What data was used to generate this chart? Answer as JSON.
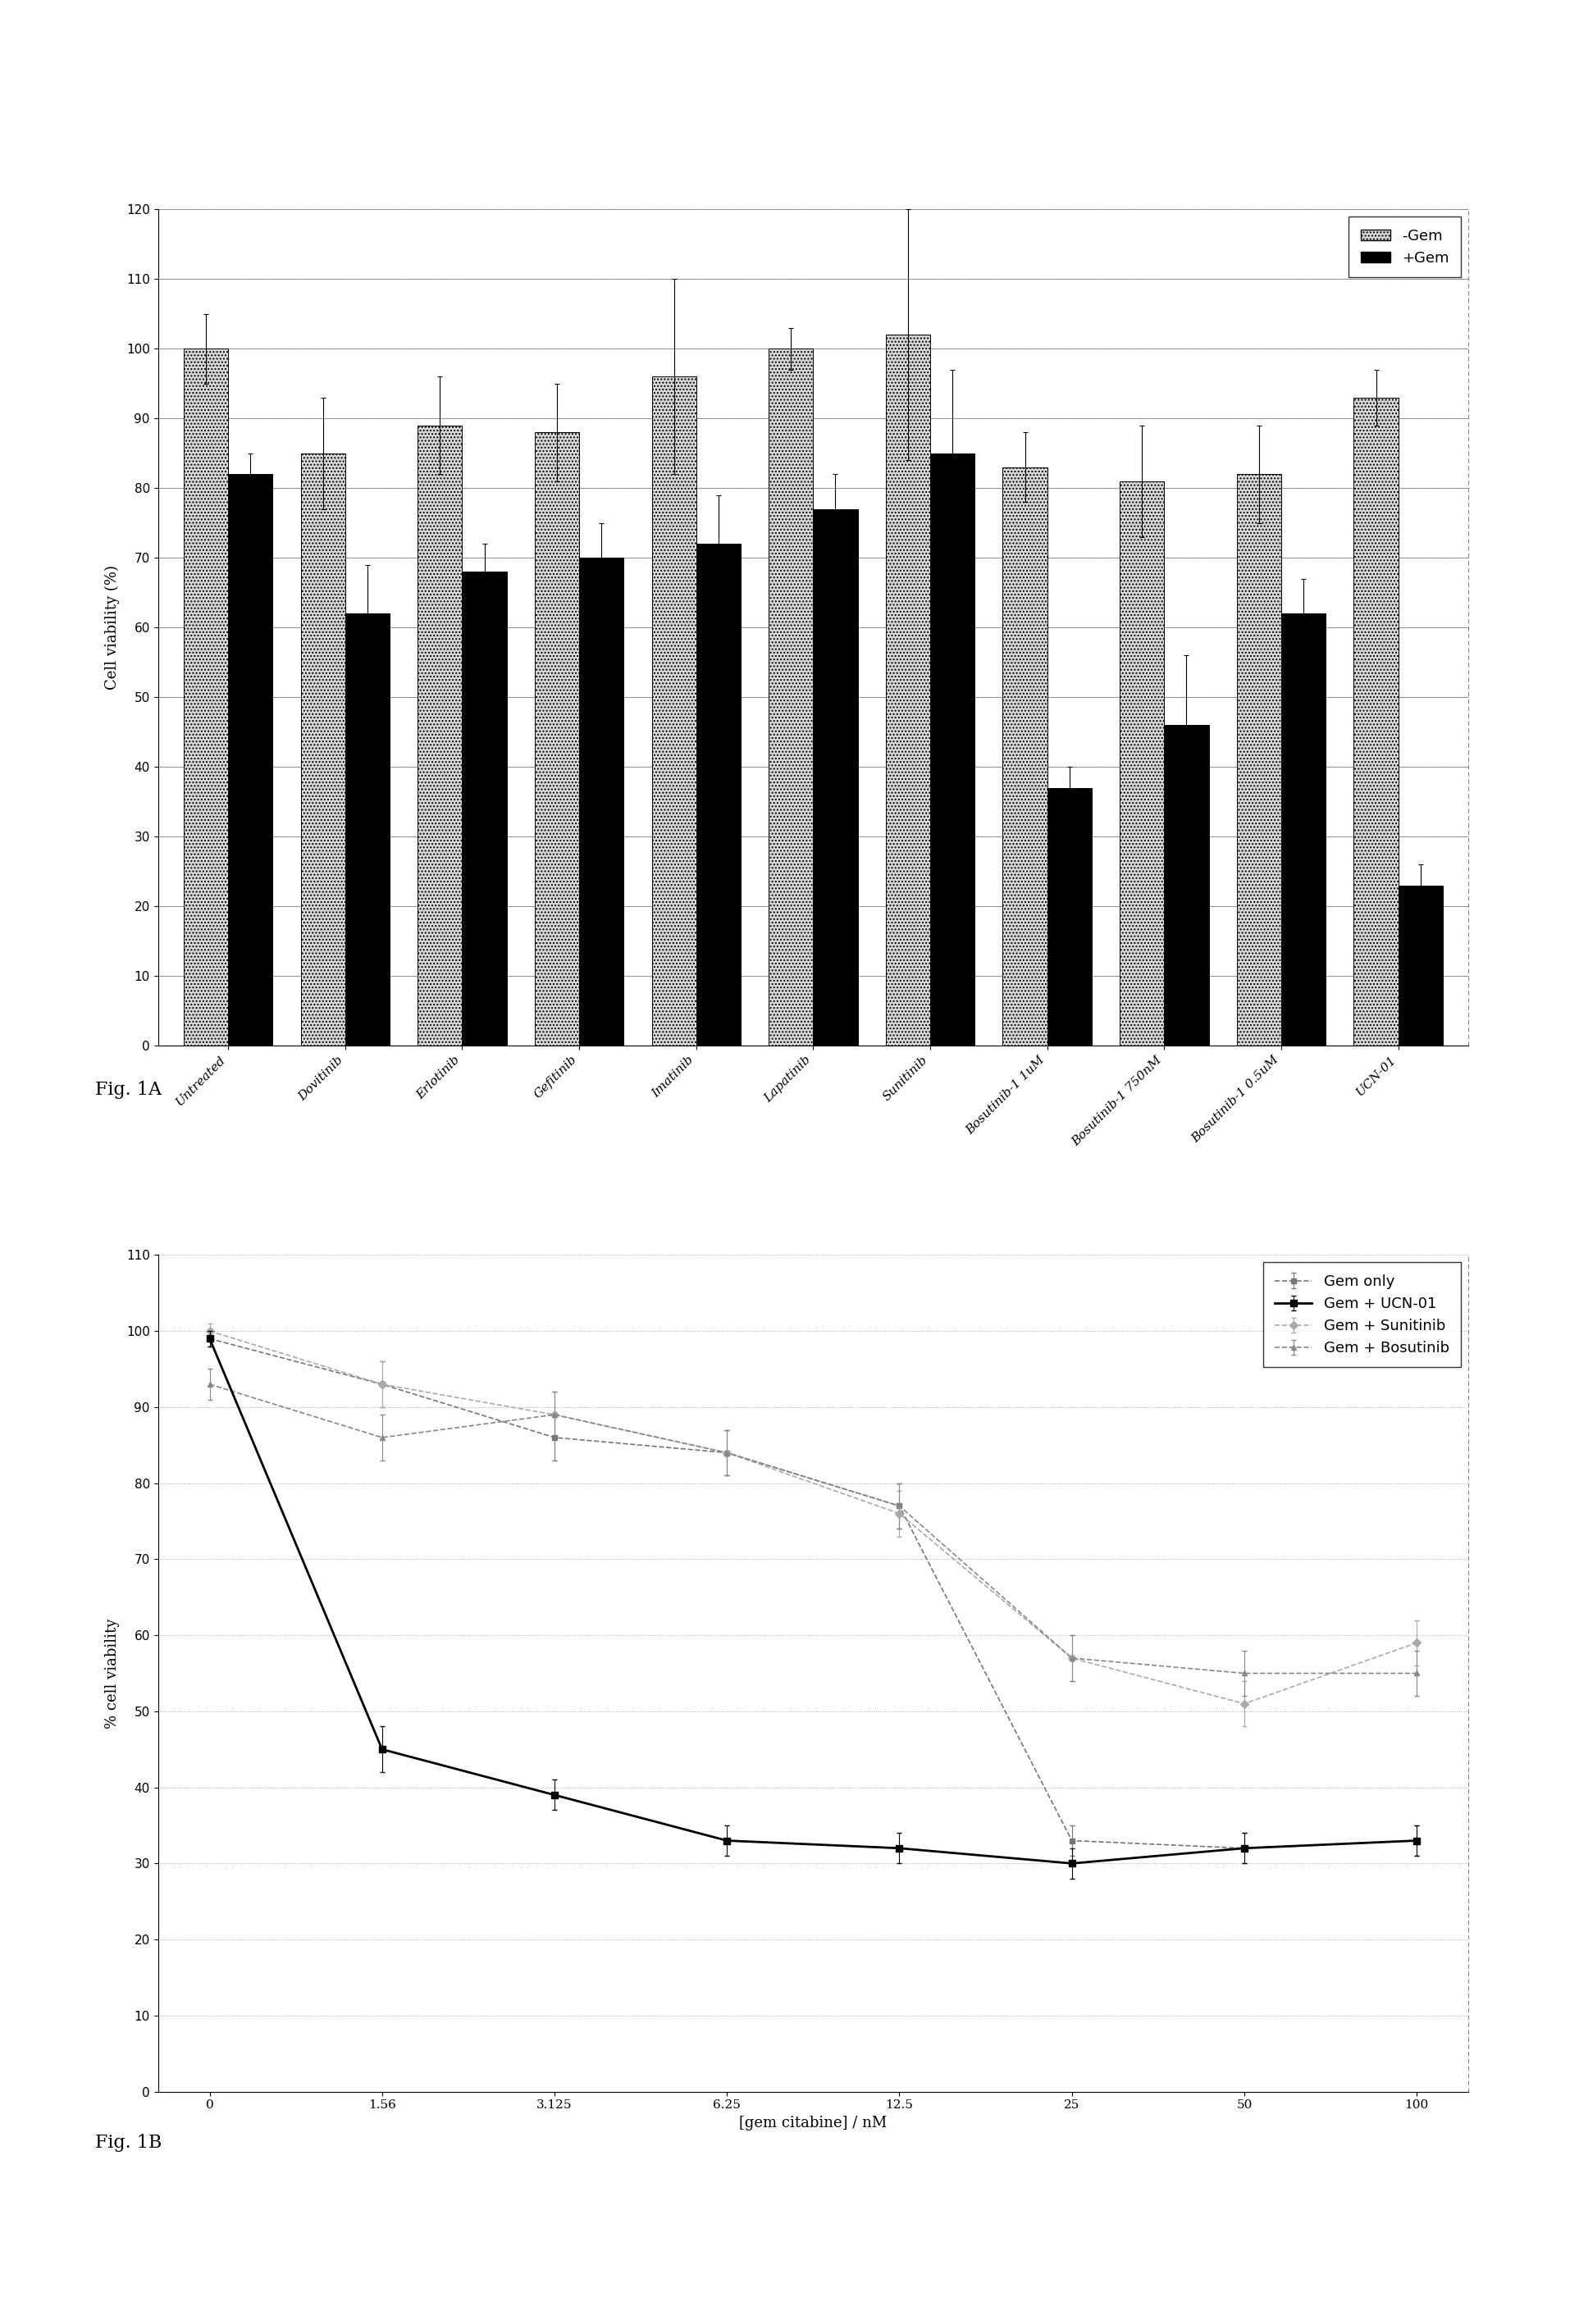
{
  "fig1A": {
    "categories": [
      "Untreated",
      "Dovitinib",
      "Erlotinib",
      "Gefitinib",
      "Imatinib",
      "Lapatinib",
      "Sunitinib",
      "Bosutinib-1 1uM",
      "Bosutinib-1 750nM",
      "Bosutinib-1 0.5uM",
      "UCN-01"
    ],
    "no_gem": [
      100,
      85,
      89,
      88,
      96,
      100,
      102,
      83,
      81,
      82,
      93
    ],
    "plus_gem": [
      82,
      62,
      68,
      70,
      72,
      77,
      85,
      37,
      46,
      62,
      23
    ],
    "no_gem_err": [
      5,
      8,
      7,
      7,
      14,
      3,
      18,
      5,
      8,
      7,
      4
    ],
    "plus_gem_err": [
      3,
      7,
      4,
      5,
      7,
      5,
      12,
      3,
      10,
      5,
      3
    ],
    "ylabel": "Cell viability (%)",
    "ylim": [
      0,
      120
    ],
    "yticks": [
      0,
      10,
      20,
      30,
      40,
      50,
      60,
      70,
      80,
      90,
      100,
      110,
      120
    ],
    "legend_labels": [
      "-Gem",
      "+Gem"
    ],
    "no_gem_color": "#d8d8d8",
    "plus_gem_color": "#000000",
    "no_gem_hatch": "....",
    "fig_label": "Fig. 1A"
  },
  "fig1B": {
    "x_vals": [
      0,
      1.56,
      3.125,
      6.25,
      12.5,
      25,
      50,
      100
    ],
    "gem_only": [
      99,
      93,
      86,
      84,
      77,
      33,
      32,
      33
    ],
    "gem_ucn01": [
      99,
      45,
      39,
      33,
      32,
      30,
      32,
      33
    ],
    "gem_sunitinib": [
      100,
      93,
      89,
      84,
      76,
      57,
      51,
      59
    ],
    "gem_bosutinib": [
      93,
      86,
      89,
      84,
      77,
      57,
      55,
      55
    ],
    "gem_only_err": [
      1,
      3,
      3,
      3,
      3,
      2,
      2,
      2
    ],
    "gem_ucn01_err": [
      1,
      3,
      2,
      2,
      2,
      2,
      2,
      2
    ],
    "gem_sunitinib_err": [
      1,
      3,
      3,
      3,
      3,
      3,
      3,
      3
    ],
    "gem_bosutinib_err": [
      2,
      3,
      3,
      3,
      3,
      3,
      3,
      3
    ],
    "xlabel": "[gem citabine] / nM",
    "ylabel": "% cell viability",
    "ylim": [
      0,
      110
    ],
    "yticks": [
      0,
      10,
      20,
      30,
      40,
      50,
      60,
      70,
      80,
      90,
      100,
      110
    ],
    "xtick_labels": [
      "0",
      "1.56",
      "3.125",
      "6.25",
      "12.5",
      "25",
      "50",
      "100"
    ],
    "legend_labels": [
      "Gem only",
      "Gem + UCN-01",
      "Gem + Sunitinib",
      "Gem + Bosutinib"
    ],
    "fig_label": "Fig. 1B"
  },
  "background_color": "#ffffff",
  "font_size": 13,
  "tick_font_size": 11,
  "label_font_size": 13
}
